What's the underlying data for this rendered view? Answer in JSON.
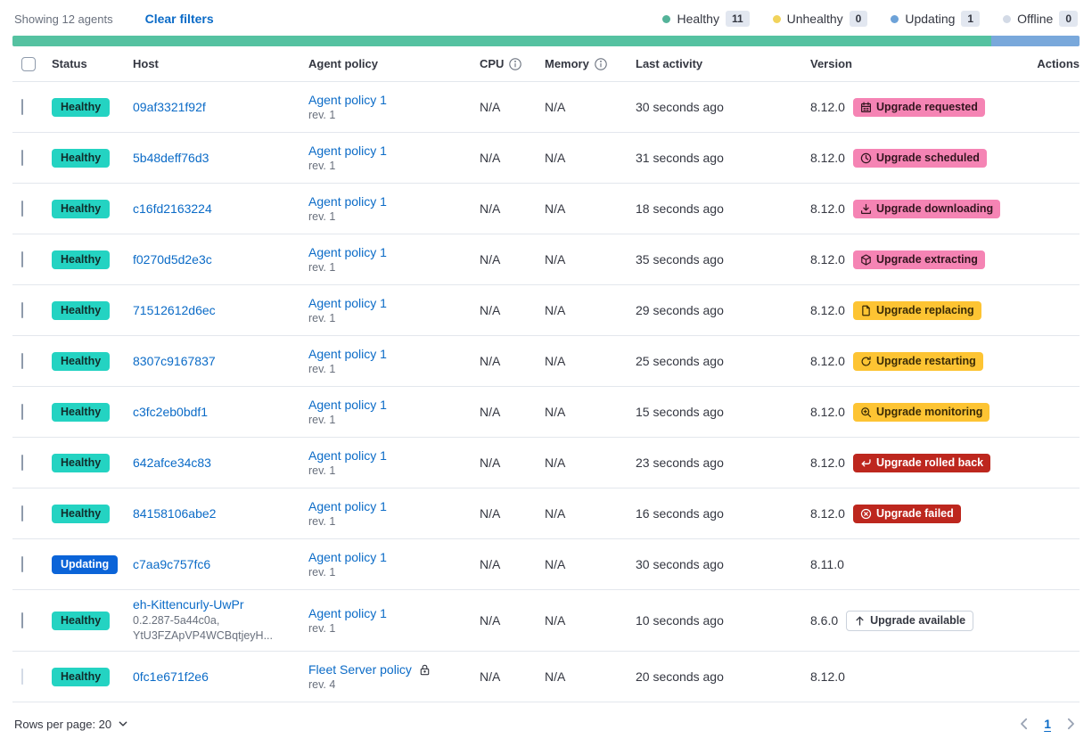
{
  "toolbar": {
    "showing": "Showing 12 agents",
    "clear_filters": "Clear filters"
  },
  "legend": {
    "items": [
      {
        "label": "Healthy",
        "count": "11",
        "color": "#54B399"
      },
      {
        "label": "Unhealthy",
        "count": "0",
        "color": "#F1D35B"
      },
      {
        "label": "Updating",
        "count": "1",
        "color": "#6DA2D8"
      },
      {
        "label": "Offline",
        "count": "0",
        "color": "#D3DAE6"
      }
    ]
  },
  "health_bar": {
    "segments": [
      {
        "name": "healthy",
        "color": "#55C2A1",
        "percent": 91.7
      },
      {
        "name": "updating",
        "color": "#79A8DB",
        "percent": 8.3
      }
    ]
  },
  "table": {
    "columns": [
      {
        "label": "Status"
      },
      {
        "label": "Host"
      },
      {
        "label": "Agent policy"
      },
      {
        "label": "CPU",
        "info_icon": "info-icon"
      },
      {
        "label": "Memory",
        "info_icon": "info-icon"
      },
      {
        "label": "Last activity"
      },
      {
        "label": "Version"
      },
      {
        "label": "Actions"
      }
    ],
    "rows": [
      {
        "status": "Healthy",
        "status_color": "healthy",
        "host": "09af3321f92f",
        "host_sub": "",
        "policy": "Agent policy 1",
        "policy_rev": "rev. 1",
        "policy_locked": false,
        "cpu": "N/A",
        "memory": "N/A",
        "last_activity": "30 seconds ago",
        "version": "8.12.0",
        "upgrade_badge": {
          "label": "Upgrade requested",
          "icon": "calendar-icon",
          "style": "pink"
        },
        "version_info_icon": true,
        "checkbox_disabled": false
      },
      {
        "status": "Healthy",
        "status_color": "healthy",
        "host": "5b48deff76d3",
        "host_sub": "",
        "policy": "Agent policy 1",
        "policy_rev": "rev. 1",
        "policy_locked": false,
        "cpu": "N/A",
        "memory": "N/A",
        "last_activity": "31 seconds ago",
        "version": "8.12.0",
        "upgrade_badge": {
          "label": "Upgrade scheduled",
          "icon": "clock-icon",
          "style": "pink"
        },
        "version_info_icon": true,
        "checkbox_disabled": false
      },
      {
        "status": "Healthy",
        "status_color": "healthy",
        "host": "c16fd2163224",
        "host_sub": "",
        "policy": "Agent policy 1",
        "policy_rev": "rev. 1",
        "policy_locked": false,
        "cpu": "N/A",
        "memory": "N/A",
        "last_activity": "18 seconds ago",
        "version": "8.12.0",
        "upgrade_badge": {
          "label": "Upgrade downloading",
          "icon": "download-icon",
          "style": "pink"
        },
        "version_info_icon": true,
        "checkbox_disabled": false
      },
      {
        "status": "Healthy",
        "status_color": "healthy",
        "host": "f0270d5d2e3c",
        "host_sub": "",
        "policy": "Agent policy 1",
        "policy_rev": "rev. 1",
        "policy_locked": false,
        "cpu": "N/A",
        "memory": "N/A",
        "last_activity": "35 seconds ago",
        "version": "8.12.0",
        "upgrade_badge": {
          "label": "Upgrade extracting",
          "icon": "package-icon",
          "style": "pink"
        },
        "version_info_icon": true,
        "checkbox_disabled": false
      },
      {
        "status": "Healthy",
        "status_color": "healthy",
        "host": "71512612d6ec",
        "host_sub": "",
        "policy": "Agent policy 1",
        "policy_rev": "rev. 1",
        "policy_locked": false,
        "cpu": "N/A",
        "memory": "N/A",
        "last_activity": "29 seconds ago",
        "version": "8.12.0",
        "upgrade_badge": {
          "label": "Upgrade replacing",
          "icon": "document-icon",
          "style": "yellow"
        },
        "version_info_icon": true,
        "checkbox_disabled": false
      },
      {
        "status": "Healthy",
        "status_color": "healthy",
        "host": "8307c9167837",
        "host_sub": "",
        "policy": "Agent policy 1",
        "policy_rev": "rev. 1",
        "policy_locked": false,
        "cpu": "N/A",
        "memory": "N/A",
        "last_activity": "25 seconds ago",
        "version": "8.12.0",
        "upgrade_badge": {
          "label": "Upgrade restarting",
          "icon": "refresh-icon",
          "style": "yellow"
        },
        "version_info_icon": true,
        "checkbox_disabled": false
      },
      {
        "status": "Healthy",
        "status_color": "healthy",
        "host": "c3fc2eb0bdf1",
        "host_sub": "",
        "policy": "Agent policy 1",
        "policy_rev": "rev. 1",
        "policy_locked": false,
        "cpu": "N/A",
        "memory": "N/A",
        "last_activity": "15 seconds ago",
        "version": "8.12.0",
        "upgrade_badge": {
          "label": "Upgrade monitoring",
          "icon": "inspect-icon",
          "style": "yellow"
        },
        "version_info_icon": true,
        "checkbox_disabled": false
      },
      {
        "status": "Healthy",
        "status_color": "healthy",
        "host": "642afce34c83",
        "host_sub": "",
        "policy": "Agent policy 1",
        "policy_rev": "rev. 1",
        "policy_locked": false,
        "cpu": "N/A",
        "memory": "N/A",
        "last_activity": "23 seconds ago",
        "version": "8.12.0",
        "upgrade_badge": {
          "label": "Upgrade rolled back",
          "icon": "return-arrow-icon",
          "style": "red"
        },
        "version_info_icon": true,
        "checkbox_disabled": false
      },
      {
        "status": "Healthy",
        "status_color": "healthy",
        "host": "84158106abe2",
        "host_sub": "",
        "policy": "Agent policy 1",
        "policy_rev": "rev. 1",
        "policy_locked": false,
        "cpu": "N/A",
        "memory": "N/A",
        "last_activity": "16 seconds ago",
        "version": "8.12.0",
        "upgrade_badge": {
          "label": "Upgrade failed",
          "icon": "error-icon",
          "style": "red"
        },
        "version_info_icon": true,
        "checkbox_disabled": false
      },
      {
        "status": "Updating",
        "status_color": "updating",
        "host": "c7aa9c757fc6",
        "host_sub": "",
        "policy": "Agent policy 1",
        "policy_rev": "rev. 1",
        "policy_locked": false,
        "cpu": "N/A",
        "memory": "N/A",
        "last_activity": "30 seconds ago",
        "version": "8.11.0",
        "upgrade_badge": null,
        "version_info_icon": true,
        "checkbox_disabled": false
      },
      {
        "status": "Healthy",
        "status_color": "healthy",
        "host": "eh-Kittencurly-UwPr",
        "host_sub": "0.2.287-5a44c0a,\nYtU3FZApVP4WCBqtjeyH...",
        "policy": "Agent policy 1",
        "policy_rev": "rev. 1",
        "policy_locked": false,
        "cpu": "N/A",
        "memory": "N/A",
        "last_activity": "10 seconds ago",
        "version": "8.6.0",
        "upgrade_badge": {
          "label": "Upgrade available",
          "icon": "arrow-up-icon",
          "style": "outline"
        },
        "version_info_icon": false,
        "checkbox_disabled": false
      },
      {
        "status": "Healthy",
        "status_color": "healthy",
        "host": "0fc1e671f2e6",
        "host_sub": "",
        "policy": "Fleet Server policy",
        "policy_rev": "rev. 4",
        "policy_locked": true,
        "cpu": "N/A",
        "memory": "N/A",
        "last_activity": "20 seconds ago",
        "version": "8.12.0",
        "upgrade_badge": null,
        "version_info_icon": false,
        "checkbox_disabled": true
      }
    ]
  },
  "footer": {
    "rows_per_page": "Rows per page: 20",
    "page": "1"
  },
  "icons": {
    "info-icon": "circled i",
    "actions-icon": "three small boxes",
    "lock-icon": "padlock",
    "calendar-icon": "calendar",
    "clock-icon": "clock",
    "download-icon": "arrow into tray",
    "package-icon": "cube",
    "document-icon": "page",
    "refresh-icon": "circular arrow",
    "inspect-icon": "magnifier",
    "return-arrow-icon": "curved back arrow",
    "error-icon": "circled x",
    "arrow-up-icon": "up arrow",
    "chevron-down-icon": "v",
    "chevron-left-icon": "<",
    "chevron-right-icon": ">"
  },
  "colors": {
    "link_blue": "#0B6BC7",
    "healthy_badge": "#24D3C2",
    "updating_badge": "#0B64D8",
    "accent_pink": "#F584B4",
    "accent_yellow": "#FDC433",
    "accent_red": "#BD271E",
    "bar_green": "#55C2A1",
    "bar_blue": "#79A8DB"
  }
}
